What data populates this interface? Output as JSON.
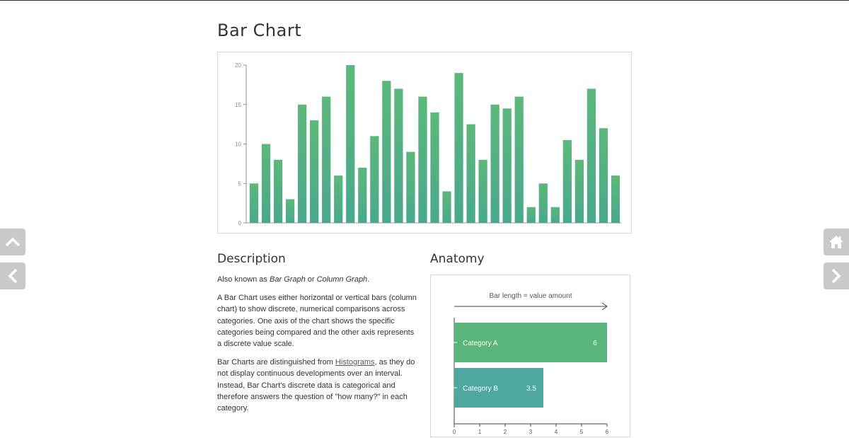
{
  "page": {
    "title": "Bar Chart"
  },
  "chart_data": {
    "type": "bar",
    "title": "",
    "xlabel": "",
    "ylabel": "",
    "ylim": [
      0,
      20
    ],
    "yticks": [
      0,
      5,
      10,
      15,
      20
    ],
    "values": [
      5,
      10,
      8,
      3,
      15,
      13,
      16,
      6,
      20,
      7,
      11,
      18,
      17,
      9,
      16,
      14,
      4,
      19,
      12.5,
      8,
      15,
      14.5,
      16,
      2,
      5,
      2,
      10.5,
      8,
      17,
      12,
      6
    ],
    "colors": {
      "bar_top": "#5cb87a",
      "bar_bottom": "#4aa88e"
    },
    "grid": false
  },
  "description": {
    "heading": "Description",
    "aka_prefix": "Also known as ",
    "aka_term1": "Bar Graph",
    "aka_or": " or ",
    "aka_term2": "Column Graph",
    "aka_suffix": ".",
    "para2": "A Bar Chart uses either horizontal or vertical bars (column chart) to show discrete, numerical comparisons across categories. One axis of the chart shows the specific categories being compared and the other axis represents a discrete value scale.",
    "para3_prefix": "Bar Charts are distinguished from ",
    "para3_link": "Histograms",
    "para3_suffix": ", as they do not display continuous developments over an interval. Instead, Bar Chart's discrete data is categorical and therefore answers the question of \"how many?\" in each category."
  },
  "anatomy": {
    "heading": "Anatomy",
    "chart_data": {
      "type": "bar",
      "orientation": "horizontal",
      "annotation": "Bar length  =  value amount",
      "categories": [
        "Category A",
        "Category B"
      ],
      "values": [
        6,
        3.5
      ],
      "value_labels": [
        "6",
        "3.5"
      ],
      "xlim": [
        0,
        6
      ],
      "xticks": [
        "0",
        "1",
        "2",
        "3",
        "4",
        "5",
        "6"
      ],
      "colors": [
        "#5ab57a",
        "#4fa8a0"
      ]
    }
  },
  "nav": {
    "up": "chevron-up-icon",
    "prev": "chevron-left-icon",
    "home": "home-icon",
    "next": "chevron-right-icon"
  }
}
